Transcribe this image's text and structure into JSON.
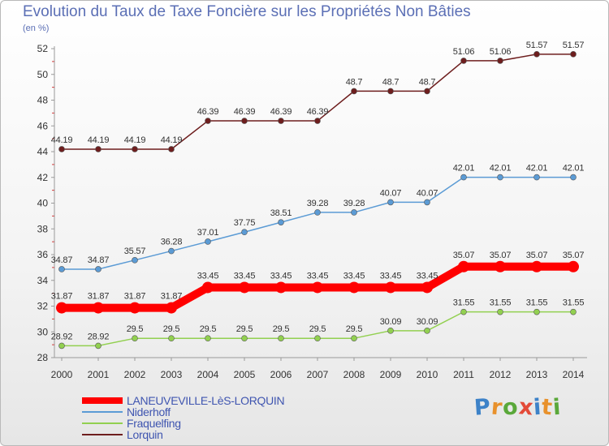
{
  "title": "Evolution du Taux de Taxe Foncière sur les Propriétés Non Bâties",
  "subtitle": "(en %)",
  "logo": {
    "letters": [
      "P",
      "r",
      "o",
      "x",
      "i",
      "t",
      "i"
    ],
    "colors": [
      "#3d82c8",
      "#e8912c",
      "#5aa83a",
      "#e34a38",
      "#3d82c8",
      "#e8912c",
      "#5aa83a"
    ]
  },
  "chart_data": {
    "type": "line",
    "x": [
      "2000",
      "2001",
      "2002",
      "2003",
      "2004",
      "2005",
      "2006",
      "2007",
      "2008",
      "2009",
      "2010",
      "2011",
      "2012",
      "2013",
      "2014"
    ],
    "ylim": [
      28,
      52
    ],
    "yticks": [
      "28",
      "30",
      "32",
      "34",
      "36",
      "38",
      "40",
      "42",
      "44",
      "46",
      "48",
      "50",
      "52"
    ],
    "grid": false,
    "legend_position": "bottom-left",
    "series": [
      {
        "name": "LANEUVEVILLE-LèS-LORQUIN",
        "color": "#ff0000",
        "emphasis": true,
        "values": [
          31.87,
          31.87,
          31.87,
          31.87,
          33.45,
          33.45,
          33.45,
          33.45,
          33.45,
          33.45,
          33.45,
          35.07,
          35.07,
          35.07,
          35.07
        ],
        "labels": [
          "31.87",
          "31.87",
          "31.87",
          "31.87",
          "33.45",
          "33.45",
          "33.45",
          "33.45",
          "33.45",
          "33.45",
          "33.45",
          "35.07",
          "35.07",
          "35.07",
          "35.07"
        ]
      },
      {
        "name": "Niderhoff",
        "color": "#5b9bd5",
        "emphasis": false,
        "values": [
          34.87,
          34.87,
          35.57,
          36.28,
          37.01,
          37.75,
          38.51,
          39.28,
          39.28,
          40.07,
          40.07,
          42.01,
          42.01,
          42.01,
          42.01
        ],
        "labels": [
          "34.87",
          "34.87",
          "35.57",
          "36.28",
          "37.01",
          "37.75",
          "38.51",
          "39.28",
          "39.28",
          "40.07",
          "40.07",
          "42.01",
          "42.01",
          "42.01",
          "42.01"
        ]
      },
      {
        "name": "Fraquelfing",
        "color": "#92d050",
        "emphasis": false,
        "values": [
          28.92,
          28.92,
          29.5,
          29.5,
          29.5,
          29.5,
          29.5,
          29.5,
          29.5,
          30.09,
          30.09,
          31.55,
          31.55,
          31.55,
          31.55
        ],
        "labels": [
          "28.92",
          "28.92",
          "29.5",
          "29.5",
          "29.5",
          "29.5",
          "29.5",
          "29.5",
          "29.5",
          "30.09",
          "30.09",
          "31.55",
          "31.55",
          "31.55",
          "31.55"
        ]
      },
      {
        "name": "Lorquin",
        "color": "#6e1e1e",
        "emphasis": false,
        "values": [
          44.19,
          44.19,
          44.19,
          44.19,
          46.39,
          46.39,
          46.39,
          46.39,
          48.7,
          48.7,
          48.7,
          51.06,
          51.06,
          51.57,
          51.57
        ],
        "labels": [
          "44.19",
          "44.19",
          "44.19",
          "44.19",
          "46.39",
          "46.39",
          "46.39",
          "46.39",
          "48.7",
          "48.7",
          "48.7",
          "51.06",
          "51.06",
          "51.57",
          "51.57"
        ]
      }
    ]
  }
}
